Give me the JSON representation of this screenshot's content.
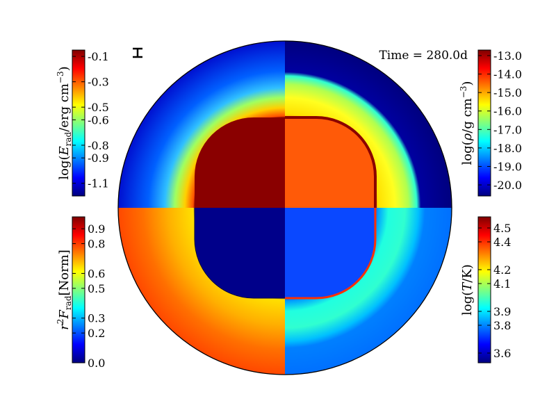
{
  "chart_data": {
    "type": "heatmap",
    "layout": "four-quadrant polar map",
    "time_label": "Time = 280.0d",
    "colormap": "jet",
    "colormap_stops": [
      "#00007f",
      "#0000ff",
      "#007fff",
      "#00ffff",
      "#7fff7f",
      "#ffff00",
      "#ff7f00",
      "#ff0000",
      "#7f0000"
    ],
    "quadrants": [
      {
        "position": "top-left",
        "quantity": "log(E_rad/erg cm^-3)",
        "label_parts": [
          "log(",
          "E",
          "rad",
          "/erg cm",
          "−3",
          ")"
        ],
        "range": [
          -1.2,
          -0.05
        ],
        "ticks": [
          -0.1,
          -0.3,
          -0.5,
          -0.6,
          -0.8,
          -0.9,
          -1.1
        ],
        "tick_labels": [
          "-0.1",
          "-0.3",
          "-0.5",
          "-0.6",
          "-0.8",
          "-0.9",
          "-1.1"
        ],
        "colorbar_side": "left"
      },
      {
        "position": "top-right",
        "quantity": "log(rho/g cm^-3)",
        "label_parts": [
          "log(",
          "ρ",
          "",
          "/g cm",
          "−3",
          ")"
        ],
        "range": [
          -20.6,
          -12.7
        ],
        "ticks": [
          -13.0,
          -14.0,
          -15.0,
          -16.0,
          -17.0,
          -18.0,
          -19.0,
          -20.0
        ],
        "tick_labels": [
          "-13.0",
          "-14.0",
          "-15.0",
          "-16.0",
          "-17.0",
          "-18.0",
          "-19.0",
          "-20.0"
        ],
        "colorbar_side": "right"
      },
      {
        "position": "bottom-left",
        "quantity": "r^2 F_rad [Norm]",
        "label_parts": [
          "r",
          "2",
          "F",
          "rad",
          "[Norm]"
        ],
        "range": [
          0.0,
          0.98
        ],
        "ticks": [
          0.9,
          0.8,
          0.6,
          0.5,
          0.3,
          0.2,
          0.0
        ],
        "tick_labels": [
          "0.9",
          "0.8",
          "0.6",
          "0.5",
          "0.3",
          "0.2",
          "0.0"
        ],
        "colorbar_side": "left"
      },
      {
        "position": "bottom-right",
        "quantity": "log(T/K)",
        "label_parts": [
          "log(",
          "T",
          "/K)"
        ],
        "range": [
          3.53,
          4.58
        ],
        "ticks": [
          4.5,
          4.4,
          4.2,
          4.1,
          3.9,
          3.8,
          3.6
        ],
        "tick_labels": [
          "4.5",
          "4.4",
          "4.2",
          "4.1",
          "3.9",
          "3.8",
          "3.6"
        ],
        "colorbar_side": "right"
      }
    ],
    "scale_bar": true
  }
}
